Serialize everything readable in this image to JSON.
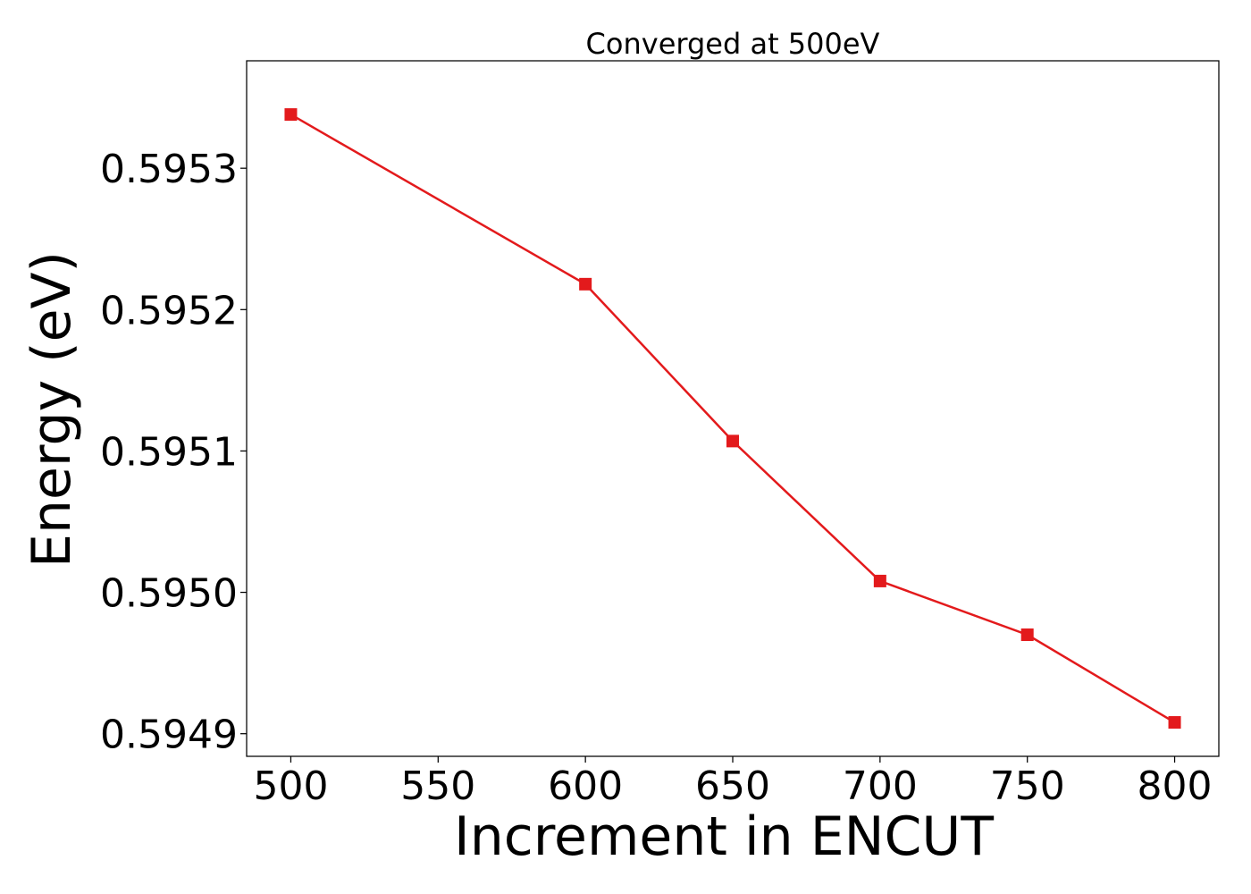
{
  "chart_data": {
    "type": "line",
    "title": "Converged at 500eV",
    "xlabel": "Increment in ENCUT",
    "ylabel": "Energy (eV)",
    "x": [
      500,
      600,
      650,
      700,
      750,
      800
    ],
    "series": [
      {
        "values": [
          0.595338,
          0.595218,
          0.595107,
          0.595008,
          0.59497,
          0.594908
        ],
        "color": "#e31a1c",
        "marker": "square"
      }
    ],
    "xticks": [
      500,
      550,
      600,
      650,
      700,
      750,
      800
    ],
    "xtick_labels": [
      "500",
      "550",
      "600",
      "650",
      "700",
      "750",
      "800"
    ],
    "yticks": [
      0.5949,
      0.595,
      0.5951,
      0.5952,
      0.5953
    ],
    "ytick_labels": [
      "0.5949",
      "0.5950",
      "0.5951",
      "0.5952",
      "0.5953"
    ],
    "xlim": [
      485,
      815
    ],
    "ylim": [
      0.594884,
      0.595376
    ],
    "grid": false,
    "legend": "none"
  }
}
